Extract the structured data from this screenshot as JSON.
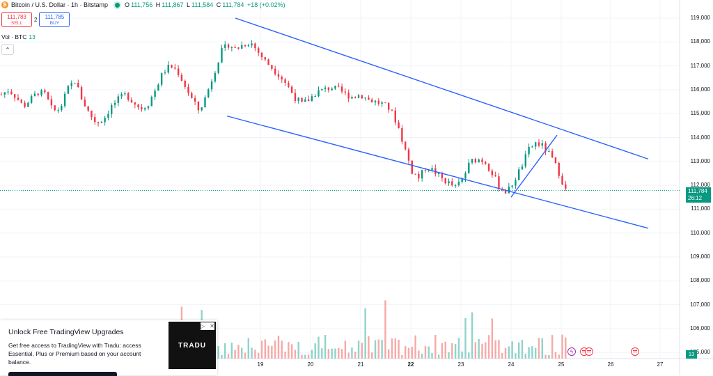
{
  "header": {
    "symbol_title": "Bitcoin / U.S. Dollar · 1h · Bitstamp",
    "ohlc": {
      "open_label": "O",
      "open": "111,756",
      "high_label": "H",
      "high": "111,867",
      "low_label": "L",
      "low": "111,584",
      "close_label": "C",
      "close": "111,784",
      "change": "+18 (+0.02%)"
    }
  },
  "trade": {
    "sell_price": "111,783",
    "sell_label": "SELL",
    "spread": "2",
    "buy_price": "111,785",
    "buy_label": "BUY"
  },
  "volume_legend": {
    "label": "Vol · BTC",
    "value": "13"
  },
  "price_axis": [
    "119,000",
    "118,000",
    "117,000",
    "116,000",
    "115,000",
    "114,000",
    "113,000",
    "112,000",
    "111,000",
    "110,000",
    "109,000",
    "108,000",
    "107,000",
    "106,000",
    "105,000"
  ],
  "current_price": {
    "price": "111,784",
    "countdown": "26:12"
  },
  "volume_badge": "13",
  "date_axis": [
    {
      "label": "19",
      "bold": false
    },
    {
      "label": "20",
      "bold": false
    },
    {
      "label": "21",
      "bold": false
    },
    {
      "label": "22",
      "bold": true
    },
    {
      "label": "23",
      "bold": false
    },
    {
      "label": "24",
      "bold": false
    },
    {
      "label": "25",
      "bold": false
    },
    {
      "label": "26",
      "bold": false
    },
    {
      "label": "27",
      "bold": false
    }
  ],
  "ad": {
    "title": "Unlock Free TradingView Upgrades",
    "body": "Get free access to TradingView with Tradu: access Essential, Plus or Premium based on your account balance.",
    "logo_text": "TRADU",
    "ad_choices_icon": "ad-choices-icon",
    "close_icon": "close-icon"
  },
  "colors": {
    "up": "#089981",
    "down": "#f23645",
    "trendline": "#2962ff",
    "up_volume": "#8fd3c9",
    "down_volume": "#f7a9a7"
  },
  "chart_data": {
    "type": "candlestick",
    "y_range": [
      104500,
      119300
    ],
    "x_axis": [
      "19",
      "20",
      "21",
      "22",
      "23",
      "24",
      "25",
      "26",
      "27"
    ],
    "close_series_approx": [
      115800,
      116000,
      115700,
      115300,
      115600,
      115900,
      115800,
      115100,
      115200,
      116000,
      116400,
      115600,
      115000,
      114600,
      114800,
      115300,
      115600,
      115800,
      115500,
      115200,
      115400,
      116000,
      116700,
      117000,
      116800,
      116200,
      115600,
      115100,
      115800,
      116700,
      117600,
      117900,
      117700,
      117900,
      118000,
      117600,
      117200,
      116900,
      116600,
      116200,
      115700,
      115400,
      115600,
      115900,
      116000,
      116100,
      116000,
      115800,
      115700,
      115800,
      115600,
      115500,
      115400,
      115200,
      114600,
      113600,
      112600,
      112300,
      112800,
      112600,
      112300,
      112100,
      111900,
      112300,
      113000,
      113100,
      113000,
      112500,
      111900,
      111700,
      112200,
      112800,
      113500,
      113800,
      113600,
      113200,
      112600,
      111800
    ],
    "trend_lines": [
      {
        "name": "upper",
        "points": [
          [
            "18 12:00",
            119000
          ],
          [
            "26 18:00",
            113100
          ]
        ]
      },
      {
        "name": "lower",
        "points": [
          [
            "18 08:00",
            114900
          ],
          [
            "26 18:00",
            110200
          ]
        ]
      },
      {
        "name": "rise",
        "points": [
          [
            "24 00:00",
            111500
          ],
          [
            "24 22:00",
            114100
          ]
        ]
      }
    ]
  }
}
